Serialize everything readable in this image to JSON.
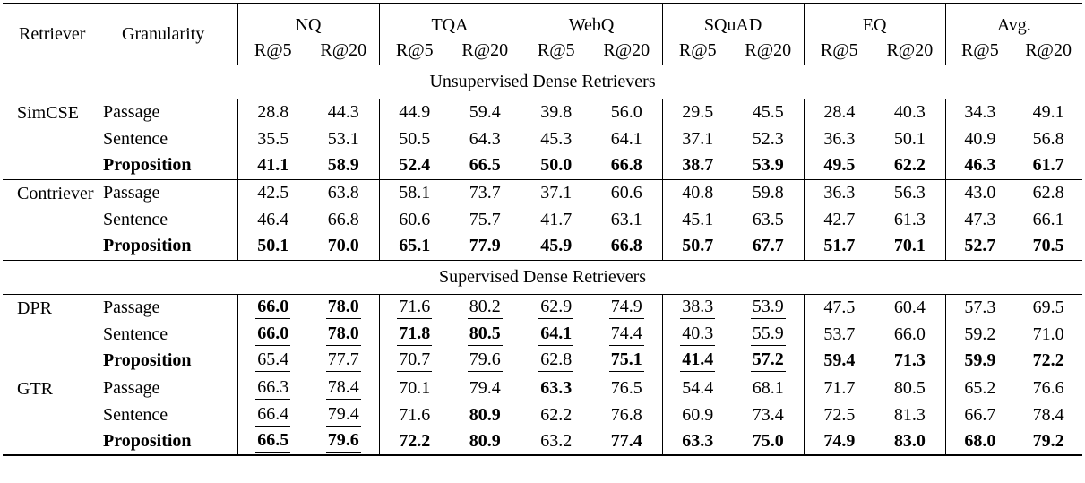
{
  "page": {
    "background": "#ffffff",
    "text_color": "#000000"
  },
  "cell_style_legend": {
    "": "plain",
    "b": "bold",
    "u": "underline",
    "bu": "bold+underline"
  },
  "table": {
    "header": {
      "retriever_label": "Retriever",
      "granularity_label": "Granularity",
      "groups": [
        "NQ",
        "TQA",
        "WebQ",
        "SQuAD",
        "EQ",
        "Avg."
      ],
      "metrics": [
        "R@5",
        "R@20"
      ]
    },
    "sections": [
      {
        "title": "Unsupervised Dense Retrievers",
        "blocks": [
          {
            "retriever": "SimCSE",
            "rows": [
              {
                "granularity": "Passage",
                "bold_label": false,
                "cells": [
                  [
                    "28.8",
                    ""
                  ],
                  [
                    "44.3",
                    ""
                  ],
                  [
                    "44.9",
                    ""
                  ],
                  [
                    "59.4",
                    ""
                  ],
                  [
                    "39.8",
                    ""
                  ],
                  [
                    "56.0",
                    ""
                  ],
                  [
                    "29.5",
                    ""
                  ],
                  [
                    "45.5",
                    ""
                  ],
                  [
                    "28.4",
                    ""
                  ],
                  [
                    "40.3",
                    ""
                  ],
                  [
                    "34.3",
                    ""
                  ],
                  [
                    "49.1",
                    ""
                  ]
                ]
              },
              {
                "granularity": "Sentence",
                "bold_label": false,
                "cells": [
                  [
                    "35.5",
                    ""
                  ],
                  [
                    "53.1",
                    ""
                  ],
                  [
                    "50.5",
                    ""
                  ],
                  [
                    "64.3",
                    ""
                  ],
                  [
                    "45.3",
                    ""
                  ],
                  [
                    "64.1",
                    ""
                  ],
                  [
                    "37.1",
                    ""
                  ],
                  [
                    "52.3",
                    ""
                  ],
                  [
                    "36.3",
                    ""
                  ],
                  [
                    "50.1",
                    ""
                  ],
                  [
                    "40.9",
                    ""
                  ],
                  [
                    "56.8",
                    ""
                  ]
                ]
              },
              {
                "granularity": "Proposition",
                "bold_label": true,
                "cells": [
                  [
                    "41.1",
                    "b"
                  ],
                  [
                    "58.9",
                    "b"
                  ],
                  [
                    "52.4",
                    "b"
                  ],
                  [
                    "66.5",
                    "b"
                  ],
                  [
                    "50.0",
                    "b"
                  ],
                  [
                    "66.8",
                    "b"
                  ],
                  [
                    "38.7",
                    "b"
                  ],
                  [
                    "53.9",
                    "b"
                  ],
                  [
                    "49.5",
                    "b"
                  ],
                  [
                    "62.2",
                    "b"
                  ],
                  [
                    "46.3",
                    "b"
                  ],
                  [
                    "61.7",
                    "b"
                  ]
                ]
              }
            ]
          },
          {
            "retriever": "Contriever",
            "rows": [
              {
                "granularity": "Passage",
                "bold_label": false,
                "cells": [
                  [
                    "42.5",
                    ""
                  ],
                  [
                    "63.8",
                    ""
                  ],
                  [
                    "58.1",
                    ""
                  ],
                  [
                    "73.7",
                    ""
                  ],
                  [
                    "37.1",
                    ""
                  ],
                  [
                    "60.6",
                    ""
                  ],
                  [
                    "40.8",
                    ""
                  ],
                  [
                    "59.8",
                    ""
                  ],
                  [
                    "36.3",
                    ""
                  ],
                  [
                    "56.3",
                    ""
                  ],
                  [
                    "43.0",
                    ""
                  ],
                  [
                    "62.8",
                    ""
                  ]
                ]
              },
              {
                "granularity": "Sentence",
                "bold_label": false,
                "cells": [
                  [
                    "46.4",
                    ""
                  ],
                  [
                    "66.8",
                    ""
                  ],
                  [
                    "60.6",
                    ""
                  ],
                  [
                    "75.7",
                    ""
                  ],
                  [
                    "41.7",
                    ""
                  ],
                  [
                    "63.1",
                    ""
                  ],
                  [
                    "45.1",
                    ""
                  ],
                  [
                    "63.5",
                    ""
                  ],
                  [
                    "42.7",
                    ""
                  ],
                  [
                    "61.3",
                    ""
                  ],
                  [
                    "47.3",
                    ""
                  ],
                  [
                    "66.1",
                    ""
                  ]
                ]
              },
              {
                "granularity": "Proposition",
                "bold_label": true,
                "cells": [
                  [
                    "50.1",
                    "b"
                  ],
                  [
                    "70.0",
                    "b"
                  ],
                  [
                    "65.1",
                    "b"
                  ],
                  [
                    "77.9",
                    "b"
                  ],
                  [
                    "45.9",
                    "b"
                  ],
                  [
                    "66.8",
                    "b"
                  ],
                  [
                    "50.7",
                    "b"
                  ],
                  [
                    "67.7",
                    "b"
                  ],
                  [
                    "51.7",
                    "b"
                  ],
                  [
                    "70.1",
                    "b"
                  ],
                  [
                    "52.7",
                    "b"
                  ],
                  [
                    "70.5",
                    "b"
                  ]
                ]
              }
            ]
          }
        ]
      },
      {
        "title": "Supervised Dense Retrievers",
        "blocks": [
          {
            "retriever": "DPR",
            "rows": [
              {
                "granularity": "Passage",
                "bold_label": false,
                "cells": [
                  [
                    "66.0",
                    "bu"
                  ],
                  [
                    "78.0",
                    "bu"
                  ],
                  [
                    "71.6",
                    "u"
                  ],
                  [
                    "80.2",
                    "u"
                  ],
                  [
                    "62.9",
                    "u"
                  ],
                  [
                    "74.9",
                    "u"
                  ],
                  [
                    "38.3",
                    "u"
                  ],
                  [
                    "53.9",
                    "u"
                  ],
                  [
                    "47.5",
                    ""
                  ],
                  [
                    "60.4",
                    ""
                  ],
                  [
                    "57.3",
                    ""
                  ],
                  [
                    "69.5",
                    ""
                  ]
                ]
              },
              {
                "granularity": "Sentence",
                "bold_label": false,
                "cells": [
                  [
                    "66.0",
                    "bu"
                  ],
                  [
                    "78.0",
                    "bu"
                  ],
                  [
                    "71.8",
                    "bu"
                  ],
                  [
                    "80.5",
                    "bu"
                  ],
                  [
                    "64.1",
                    "bu"
                  ],
                  [
                    "74.4",
                    "u"
                  ],
                  [
                    "40.3",
                    "u"
                  ],
                  [
                    "55.9",
                    "u"
                  ],
                  [
                    "53.7",
                    ""
                  ],
                  [
                    "66.0",
                    ""
                  ],
                  [
                    "59.2",
                    ""
                  ],
                  [
                    "71.0",
                    ""
                  ]
                ]
              },
              {
                "granularity": "Proposition",
                "bold_label": true,
                "cells": [
                  [
                    "65.4",
                    "u"
                  ],
                  [
                    "77.7",
                    "u"
                  ],
                  [
                    "70.7",
                    "u"
                  ],
                  [
                    "79.6",
                    "u"
                  ],
                  [
                    "62.8",
                    "u"
                  ],
                  [
                    "75.1",
                    "bu"
                  ],
                  [
                    "41.4",
                    "bu"
                  ],
                  [
                    "57.2",
                    "bu"
                  ],
                  [
                    "59.4",
                    "b"
                  ],
                  [
                    "71.3",
                    "b"
                  ],
                  [
                    "59.9",
                    "b"
                  ],
                  [
                    "72.2",
                    "b"
                  ]
                ]
              }
            ]
          },
          {
            "retriever": "GTR",
            "rows": [
              {
                "granularity": "Passage",
                "bold_label": false,
                "cells": [
                  [
                    "66.3",
                    "u"
                  ],
                  [
                    "78.4",
                    "u"
                  ],
                  [
                    "70.1",
                    ""
                  ],
                  [
                    "79.4",
                    ""
                  ],
                  [
                    "63.3",
                    "b"
                  ],
                  [
                    "76.5",
                    ""
                  ],
                  [
                    "54.4",
                    ""
                  ],
                  [
                    "68.1",
                    ""
                  ],
                  [
                    "71.7",
                    ""
                  ],
                  [
                    "80.5",
                    ""
                  ],
                  [
                    "65.2",
                    ""
                  ],
                  [
                    "76.6",
                    ""
                  ]
                ]
              },
              {
                "granularity": "Sentence",
                "bold_label": false,
                "cells": [
                  [
                    "66.4",
                    "u"
                  ],
                  [
                    "79.4",
                    "u"
                  ],
                  [
                    "71.6",
                    ""
                  ],
                  [
                    "80.9",
                    "b"
                  ],
                  [
                    "62.2",
                    ""
                  ],
                  [
                    "76.8",
                    ""
                  ],
                  [
                    "60.9",
                    ""
                  ],
                  [
                    "73.4",
                    ""
                  ],
                  [
                    "72.5",
                    ""
                  ],
                  [
                    "81.3",
                    ""
                  ],
                  [
                    "66.7",
                    ""
                  ],
                  [
                    "78.4",
                    ""
                  ]
                ]
              },
              {
                "granularity": "Proposition",
                "bold_label": true,
                "cells": [
                  [
                    "66.5",
                    "bu"
                  ],
                  [
                    "79.6",
                    "bu"
                  ],
                  [
                    "72.2",
                    "b"
                  ],
                  [
                    "80.9",
                    "b"
                  ],
                  [
                    "63.2",
                    ""
                  ],
                  [
                    "77.4",
                    "b"
                  ],
                  [
                    "63.3",
                    "b"
                  ],
                  [
                    "75.0",
                    "b"
                  ],
                  [
                    "74.9",
                    "b"
                  ],
                  [
                    "83.0",
                    "b"
                  ],
                  [
                    "68.0",
                    "b"
                  ],
                  [
                    "79.2",
                    "b"
                  ]
                ]
              }
            ]
          }
        ]
      }
    ]
  }
}
